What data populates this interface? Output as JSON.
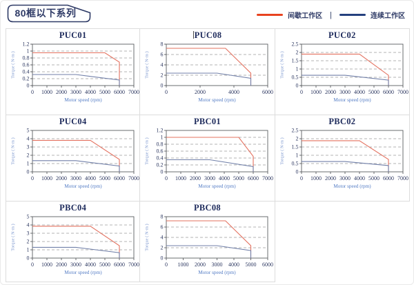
{
  "header": {
    "badge": "80框以下系列",
    "legend": [
      {
        "name": "intermittent-zone",
        "label": "间歇工作区",
        "color": "#e8431f"
      },
      {
        "name": "continuous-zone",
        "label": "连续工作区",
        "color": "#24407e"
      }
    ],
    "separator": "|"
  },
  "style": {
    "tick_color": "#2c3760",
    "frame_color": "#5a5c60",
    "grid_color": "#9a9a9a",
    "xlabel_color": "#527bc4",
    "ylabel_color": "#7b96ce"
  },
  "chart_data": [
    {
      "type": "line",
      "title": "PUC01",
      "xlabel": "Motor speed (rpm)",
      "ylabel": "Torque ( N·m )",
      "xlim": [
        0,
        7000
      ],
      "ylim": [
        0,
        1.2
      ],
      "xticks": [
        0,
        1000,
        2000,
        3000,
        4000,
        5000,
        6000,
        7000
      ],
      "yticks": [
        0,
        0.2,
        0.4,
        0.6,
        0.8,
        1,
        1.2
      ],
      "grid": "horizontal-dashed",
      "legend_position": "none",
      "series": [
        {
          "name": "间歇工作区",
          "color": "#e3705e",
          "points": [
            [
              0,
              0.95
            ],
            [
              5000,
              0.95
            ],
            [
              6000,
              0.68
            ],
            [
              6000,
              0
            ]
          ]
        },
        {
          "name": "连续工作区",
          "color": "#707fa8",
          "points": [
            [
              0,
              0.32
            ],
            [
              3000,
              0.32
            ],
            [
              6000,
              0.16
            ],
            [
              6000,
              0
            ]
          ]
        }
      ]
    },
    {
      "type": "line",
      "title": "PUC08",
      "xlabel": "Motor speed (rpm)",
      "ylabel": "Torque ( N·m )",
      "xlim": [
        0,
        6000
      ],
      "ylim": [
        0,
        8
      ],
      "xticks": [
        0,
        2000,
        4000,
        6000
      ],
      "yticks": [
        0,
        2,
        4,
        6,
        8
      ],
      "grid": "horizontal-dashed",
      "legend_position": "none",
      "series": [
        {
          "name": "间歇工作区",
          "color": "#e3705e",
          "points": [
            [
              0,
              7.2
            ],
            [
              3500,
              7.2
            ],
            [
              5000,
              2.4
            ],
            [
              5000,
              0
            ]
          ]
        },
        {
          "name": "连续工作区",
          "color": "#707fa8",
          "points": [
            [
              0,
              2.4
            ],
            [
              3000,
              2.4
            ],
            [
              5000,
              1.4
            ],
            [
              5000,
              0
            ]
          ]
        }
      ]
    },
    {
      "type": "line",
      "title": "PUC02",
      "xlabel": "Motor speed (rpm)",
      "ylabel": "Torque ( N·m )",
      "xlim": [
        0,
        7000
      ],
      "ylim": [
        0,
        2.5
      ],
      "xticks": [
        0,
        1000,
        2000,
        3000,
        4000,
        5000,
        6000,
        7000
      ],
      "yticks": [
        0,
        0.5,
        1,
        1.5,
        2,
        2.5
      ],
      "grid": "horizontal-dashed",
      "legend_position": "none",
      "series": [
        {
          "name": "间歇工作区",
          "color": "#e3705e",
          "points": [
            [
              0,
              1.9
            ],
            [
              4000,
              1.9
            ],
            [
              6000,
              0.62
            ],
            [
              6000,
              0
            ]
          ]
        },
        {
          "name": "连续工作区",
          "color": "#707fa8",
          "points": [
            [
              0,
              0.62
            ],
            [
              3000,
              0.62
            ],
            [
              6000,
              0.33
            ],
            [
              6000,
              0
            ]
          ]
        }
      ]
    },
    {
      "type": "line",
      "title": "PUC04",
      "xlabel": "Motor speed (rpm)",
      "ylabel": "Torque ( N·m )",
      "xlim": [
        0,
        7000
      ],
      "ylim": [
        0,
        5
      ],
      "xticks": [
        0,
        1000,
        2000,
        3000,
        4000,
        5000,
        6000,
        7000
      ],
      "yticks": [
        0,
        1,
        2,
        3,
        4,
        5
      ],
      "grid": "horizontal-dashed",
      "legend_position": "none",
      "series": [
        {
          "name": "间歇工作区",
          "color": "#e3705e",
          "points": [
            [
              0,
              3.8
            ],
            [
              4000,
              3.8
            ],
            [
              6000,
              1.5
            ],
            [
              6000,
              0
            ]
          ]
        },
        {
          "name": "连续工作区",
          "color": "#707fa8",
          "points": [
            [
              0,
              1.35
            ],
            [
              3000,
              1.35
            ],
            [
              6000,
              0.7
            ],
            [
              6000,
              0
            ]
          ]
        }
      ]
    },
    {
      "type": "line",
      "title": "PBC01",
      "xlabel": "Motor speed (rpm)",
      "ylabel": "Torque ( N·m )",
      "xlim": [
        0,
        7000
      ],
      "ylim": [
        0,
        1.2
      ],
      "xticks": [
        0,
        1000,
        2000,
        3000,
        4000,
        5000,
        6000,
        7000
      ],
      "yticks": [
        0,
        0.2,
        0.4,
        0.6,
        0.8,
        1,
        1.2
      ],
      "grid": "horizontal-dashed",
      "legend_position": "none",
      "series": [
        {
          "name": "间歇工作区",
          "color": "#e3705e",
          "points": [
            [
              0,
              1.0
            ],
            [
              5000,
              1.0
            ],
            [
              6000,
              0.45
            ],
            [
              6000,
              0
            ]
          ]
        },
        {
          "name": "连续工作区",
          "color": "#707fa8",
          "points": [
            [
              0,
              0.35
            ],
            [
              3000,
              0.35
            ],
            [
              6000,
              0.15
            ],
            [
              6000,
              0
            ]
          ]
        }
      ]
    },
    {
      "type": "line",
      "title": "PBC02",
      "xlabel": "Motor speed (rpm)",
      "ylabel": "Torque ( N·m )",
      "xlim": [
        0,
        7000
      ],
      "ylim": [
        0,
        2.5
      ],
      "xticks": [
        0,
        1000,
        2000,
        3000,
        4000,
        5000,
        6000,
        7000
      ],
      "yticks": [
        0,
        0.5,
        1,
        1.5,
        2,
        2.5
      ],
      "grid": "horizontal-dashed",
      "legend_position": "none",
      "series": [
        {
          "name": "间歇工作区",
          "color": "#e3705e",
          "points": [
            [
              0,
              1.88
            ],
            [
              4000,
              1.88
            ],
            [
              6000,
              0.75
            ],
            [
              6000,
              0
            ]
          ]
        },
        {
          "name": "连续工作区",
          "color": "#707fa8",
          "points": [
            [
              0,
              0.62
            ],
            [
              3000,
              0.62
            ],
            [
              6000,
              0.38
            ],
            [
              6000,
              0
            ]
          ]
        }
      ]
    },
    {
      "type": "line",
      "title": "PBC04",
      "xlabel": "Motor speed (rpm)",
      "ylabel": "Torque ( N·m )",
      "xlim": [
        0,
        7000
      ],
      "ylim": [
        0,
        5
      ],
      "xticks": [
        0,
        1000,
        2000,
        3000,
        4000,
        5000,
        6000,
        7000
      ],
      "yticks": [
        0,
        1,
        2,
        3,
        4,
        5
      ],
      "grid": "horizontal-dashed",
      "legend_position": "none",
      "series": [
        {
          "name": "间歇工作区",
          "color": "#e3705e",
          "points": [
            [
              0,
              3.85
            ],
            [
              4000,
              3.85
            ],
            [
              6000,
              1.5
            ],
            [
              6000,
              0
            ]
          ]
        },
        {
          "name": "连续工作区",
          "color": "#707fa8",
          "points": [
            [
              0,
              1.3
            ],
            [
              3000,
              1.3
            ],
            [
              6000,
              0.65
            ],
            [
              6000,
              0
            ]
          ]
        }
      ]
    },
    {
      "type": "line",
      "title": "PBC08",
      "xlabel": "Motor speed (rpm)",
      "ylabel": "Torque ( N·m )",
      "xlim": [
        0,
        6000
      ],
      "ylim": [
        0,
        8
      ],
      "xticks": [
        0,
        1000,
        2000,
        3000,
        4000,
        5000,
        6000
      ],
      "yticks": [
        0,
        2,
        4,
        6,
        8
      ],
      "grid": "horizontal-dashed",
      "legend_position": "none",
      "series": [
        {
          "name": "间歇工作区",
          "color": "#e3705e",
          "points": [
            [
              0,
              7.2
            ],
            [
              3500,
              7.2
            ],
            [
              5000,
              2.4
            ],
            [
              5000,
              0
            ]
          ]
        },
        {
          "name": "连续工作区",
          "color": "#707fa8",
          "points": [
            [
              0,
              2.4
            ],
            [
              3000,
              2.4
            ],
            [
              5000,
              1.45
            ],
            [
              5000,
              0
            ]
          ]
        }
      ]
    }
  ]
}
